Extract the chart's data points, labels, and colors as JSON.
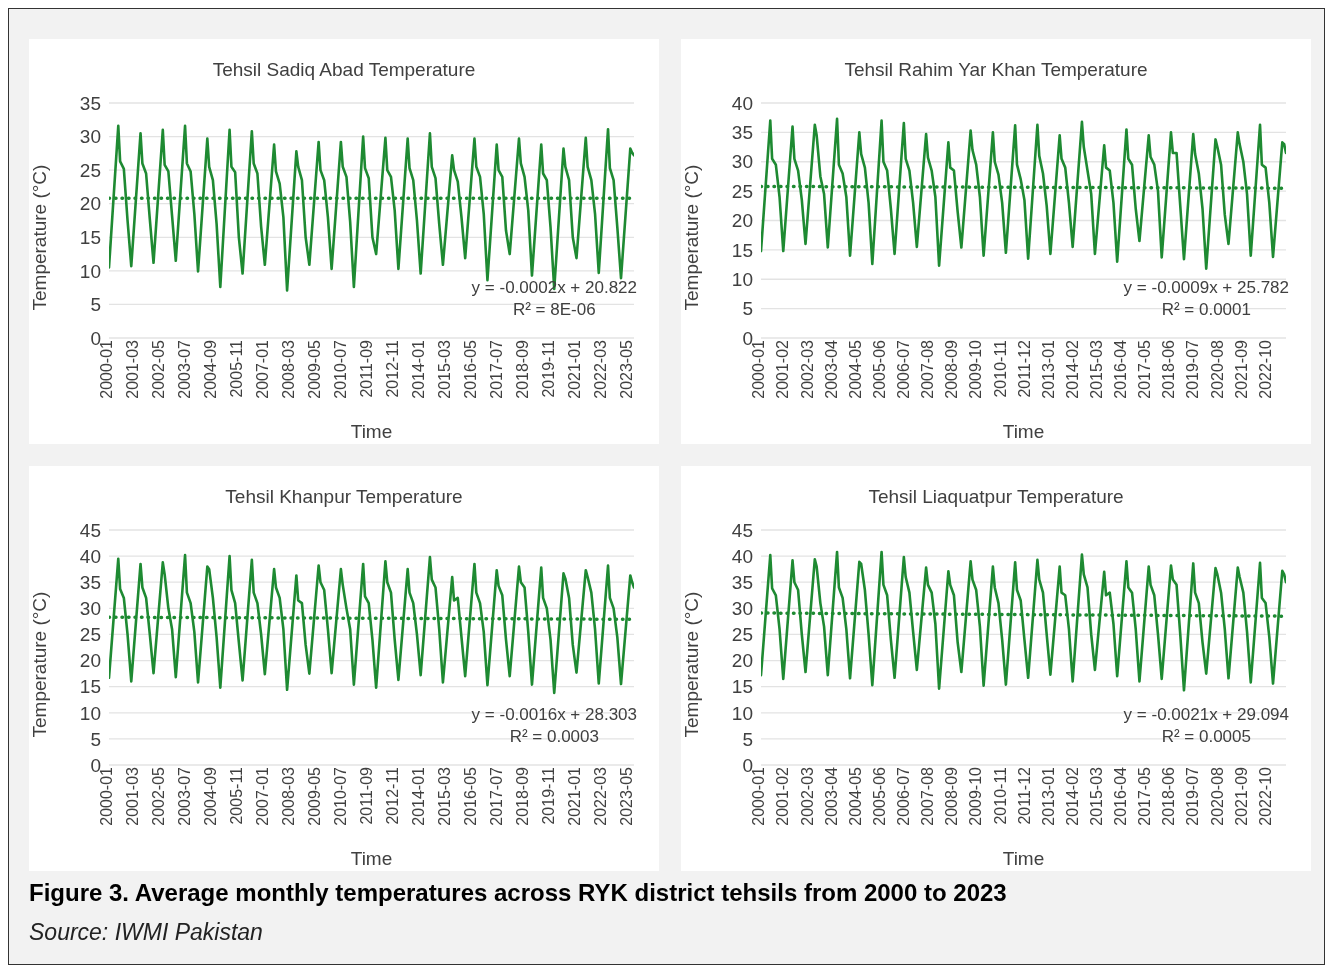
{
  "chart_data": [
    {
      "type": "line",
      "title": "Tehsil Sadiq Abad Temperature",
      "xlabel": "Time",
      "ylabel": "Temperature (°C)",
      "grid": "y",
      "ylim": [
        0,
        35
      ],
      "yticks": [
        0,
        5,
        10,
        15,
        20,
        25,
        30,
        35
      ],
      "xlim": [
        "2000-01",
        "2023-08"
      ],
      "xticks": [
        "2000-01",
        "2001-03",
        "2002-05",
        "2003-07",
        "2004-09",
        "2005-11",
        "2007-01",
        "2008-03",
        "2009-05",
        "2010-07",
        "2011-09",
        "2012-11",
        "2014-01",
        "2015-03",
        "2016-05",
        "2017-07",
        "2018-09",
        "2019-11",
        "2021-01",
        "2022-03",
        "2023-05"
      ],
      "annotations": [
        "y = -0.0002x + 20.822",
        "R² = 8E-06"
      ],
      "x": [
        "2000-01",
        "2000-06",
        "2000-07",
        "2000-09",
        "2000-11",
        "2001-01",
        "2001-06",
        "2001-07",
        "2001-09",
        "2001-11",
        "2002-01",
        "2002-06",
        "2002-07",
        "2002-09",
        "2002-11",
        "2003-01",
        "2003-06",
        "2003-07",
        "2003-09",
        "2003-11",
        "2004-01",
        "2004-06",
        "2004-07",
        "2004-09",
        "2004-11",
        "2005-01",
        "2005-06",
        "2005-07",
        "2005-09",
        "2005-11",
        "2006-01",
        "2006-06",
        "2006-07",
        "2006-09",
        "2006-11",
        "2007-01",
        "2007-06",
        "2007-07",
        "2007-09",
        "2007-11",
        "2008-01",
        "2008-06",
        "2008-07",
        "2008-09",
        "2008-11",
        "2009-01",
        "2009-06",
        "2009-07",
        "2009-09",
        "2009-11",
        "2010-01",
        "2010-06",
        "2010-07",
        "2010-09",
        "2010-11",
        "2011-01",
        "2011-06",
        "2011-07",
        "2011-09",
        "2011-11",
        "2012-01",
        "2012-06",
        "2012-07",
        "2012-09",
        "2012-11",
        "2013-01",
        "2013-06",
        "2013-07",
        "2013-09",
        "2013-11",
        "2014-01",
        "2014-06",
        "2014-07",
        "2014-09",
        "2014-11",
        "2015-01",
        "2015-06",
        "2015-07",
        "2015-09",
        "2015-11",
        "2016-01",
        "2016-06",
        "2016-07",
        "2016-09",
        "2016-11",
        "2017-01",
        "2017-06",
        "2017-07",
        "2017-09",
        "2017-11",
        "2018-01",
        "2018-06",
        "2018-07",
        "2018-09",
        "2018-11",
        "2019-01",
        "2019-06",
        "2019-07",
        "2019-09",
        "2019-11",
        "2020-01",
        "2020-06",
        "2020-07",
        "2020-09",
        "2020-11",
        "2021-01",
        "2021-06",
        "2021-07",
        "2021-09",
        "2021-11",
        "2022-01",
        "2022-06",
        "2022-07",
        "2022-09",
        "2022-11",
        "2023-01",
        "2023-06",
        "2023-07",
        "2023-08"
      ],
      "series": [
        {
          "type": "line",
          "color": "#1e8a32",
          "values": [
            10.5,
            31.6,
            26.3,
            25.2,
            17.5,
            10.7,
            30.5,
            26,
            24.5,
            17.7,
            11.2,
            31,
            25.8,
            24.8,
            18.2,
            11.5,
            31.6,
            26,
            24.8,
            18.5,
            9.9,
            29.7,
            25.5,
            23.5,
            17,
            7.6,
            31,
            25.5,
            24.7,
            15,
            9.6,
            30.8,
            26,
            24.5,
            16.6,
            10.9,
            28.8,
            24.8,
            23,
            18,
            7.1,
            27.8,
            25.5,
            23.5,
            15,
            10.9,
            29.2,
            25,
            23.5,
            18,
            10.3,
            29.2,
            25.5,
            24,
            17.3,
            7.6,
            30,
            25.3,
            23.8,
            15,
            12.5,
            29.8,
            25,
            24,
            19,
            10.3,
            29.7,
            25.3,
            23.5,
            17.5,
            9.6,
            30.5,
            25.5,
            23.8,
            17,
            10.9,
            27.2,
            25,
            23.3,
            18,
            11.9,
            29.7,
            25.5,
            24,
            18.5,
            8.6,
            28.8,
            25,
            24,
            16,
            12.5,
            29.7,
            26,
            24,
            19,
            9.3,
            28.8,
            24.5,
            23.5,
            16.5,
            7.3,
            28.2,
            25.5,
            23.5,
            15,
            11.9,
            29.8,
            25.5,
            23.5,
            18.5,
            9.7,
            31.1,
            25.3,
            23.5,
            16.5,
            8.9,
            28.2,
            27.6,
            27.2
          ]
        },
        {
          "type": "line",
          "color": "#1e8a32",
          "line_style": "dotted",
          "x": [
            "2000-01",
            "2023-08"
          ],
          "values": [
            20.8,
            20.8
          ]
        }
      ]
    },
    {
      "type": "line",
      "title": "Tehsil Rahim Yar Khan Temperature",
      "xlabel": "Time",
      "ylabel": "Temperature (°C)",
      "grid": "y",
      "ylim": [
        0,
        40
      ],
      "yticks": [
        0,
        5,
        10,
        15,
        20,
        25,
        30,
        35,
        40
      ],
      "xlim": [
        "2000-01",
        "2023-08"
      ],
      "xticks": [
        "2000-01",
        "2001-02",
        "2002-03",
        "2003-04",
        "2004-05",
        "2005-06",
        "2006-07",
        "2007-08",
        "2008-09",
        "2009-10",
        "2010-11",
        "2011-12",
        "2013-01",
        "2014-02",
        "2015-03",
        "2016-04",
        "2017-05",
        "2018-06",
        "2019-07",
        "2020-08",
        "2021-09",
        "2022-10"
      ],
      "annotations": [
        "y = -0.0009x + 25.782",
        "R² = 0.0001"
      ],
      "x": [
        "2000-01",
        "2000-06",
        "2000-07",
        "2000-09",
        "2000-11",
        "2001-01",
        "2001-06",
        "2001-07",
        "2001-09",
        "2001-11",
        "2002-01",
        "2002-06",
        "2002-07",
        "2002-09",
        "2002-11",
        "2003-01",
        "2003-06",
        "2003-07",
        "2003-09",
        "2003-11",
        "2004-01",
        "2004-06",
        "2004-07",
        "2004-09",
        "2004-11",
        "2005-01",
        "2005-06",
        "2005-07",
        "2005-09",
        "2005-11",
        "2006-01",
        "2006-06",
        "2006-07",
        "2006-09",
        "2006-11",
        "2007-01",
        "2007-06",
        "2007-07",
        "2007-09",
        "2007-11",
        "2008-01",
        "2008-06",
        "2008-07",
        "2008-09",
        "2008-11",
        "2009-01",
        "2009-06",
        "2009-07",
        "2009-09",
        "2009-11",
        "2010-01",
        "2010-06",
        "2010-07",
        "2010-09",
        "2010-11",
        "2011-01",
        "2011-06",
        "2011-07",
        "2011-09",
        "2011-11",
        "2012-01",
        "2012-06",
        "2012-07",
        "2012-09",
        "2012-11",
        "2013-01",
        "2013-06",
        "2013-07",
        "2013-09",
        "2013-11",
        "2014-01",
        "2014-06",
        "2014-07",
        "2014-09",
        "2014-11",
        "2015-01",
        "2015-06",
        "2015-07",
        "2015-09",
        "2015-11",
        "2016-01",
        "2016-06",
        "2016-07",
        "2016-09",
        "2016-11",
        "2017-01",
        "2017-06",
        "2017-07",
        "2017-09",
        "2017-11",
        "2018-01",
        "2018-06",
        "2018-07",
        "2018-09",
        "2018-11",
        "2019-01",
        "2019-06",
        "2019-07",
        "2019-09",
        "2019-11",
        "2020-01",
        "2020-06",
        "2020-07",
        "2020-09",
        "2020-11",
        "2021-01",
        "2021-06",
        "2021-07",
        "2021-09",
        "2021-11",
        "2022-01",
        "2022-06",
        "2022-07",
        "2022-09",
        "2022-11",
        "2023-01",
        "2023-06",
        "2023-07",
        "2023-08"
      ],
      "series": [
        {
          "type": "line",
          "color": "#1e8a32",
          "values": [
            14.8,
            37,
            30.5,
            29.5,
            24,
            14.8,
            36,
            30.5,
            28.5,
            23.5,
            16,
            36.3,
            34.5,
            27.5,
            24.5,
            15.4,
            37.3,
            29.5,
            28,
            24,
            14,
            35,
            31.3,
            29,
            23,
            12.6,
            37,
            30,
            28.5,
            22,
            14.3,
            36.6,
            30.5,
            28.5,
            23,
            15.5,
            34.7,
            30.7,
            28.5,
            24,
            12.3,
            33.3,
            29,
            28.5,
            21.5,
            15.4,
            35.3,
            32,
            29.5,
            24,
            14,
            35,
            30,
            27.8,
            23,
            14.5,
            36.2,
            29.5,
            27,
            23.5,
            13.5,
            36.3,
            31,
            28,
            22.5,
            14.3,
            34.5,
            30.5,
            29,
            23,
            15.5,
            36.8,
            32.5,
            28.5,
            24.5,
            14.3,
            32.8,
            29,
            28.5,
            23,
            13,
            35.5,
            30.5,
            29.5,
            22,
            16.5,
            34.5,
            30.8,
            29.5,
            25,
            13.7,
            35,
            31.5,
            31.5,
            22.5,
            13.4,
            34.7,
            31.3,
            28,
            22,
            11.8,
            33.8,
            32.5,
            29.5,
            21,
            16,
            35,
            33,
            30,
            24.5,
            14,
            36.3,
            29.5,
            29,
            23,
            13.8,
            33.3,
            33,
            31.5
          ]
        },
        {
          "type": "line",
          "color": "#1e8a32",
          "line_style": "dotted",
          "x": [
            "2000-01",
            "2023-08"
          ],
          "values": [
            25.8,
            25.5
          ]
        }
      ]
    },
    {
      "type": "line",
      "title": "Tehsil Khanpur Temperature",
      "xlabel": "Time",
      "ylabel": "Temperature (°C)",
      "grid": "y",
      "ylim": [
        0,
        45
      ],
      "yticks": [
        0,
        5,
        10,
        15,
        20,
        25,
        30,
        35,
        40,
        45
      ],
      "xlim": [
        "2000-01",
        "2023-08"
      ],
      "xticks": [
        "2000-01",
        "2001-03",
        "2002-05",
        "2003-07",
        "2004-09",
        "2005-11",
        "2007-01",
        "2008-03",
        "2009-05",
        "2010-07",
        "2011-09",
        "2012-11",
        "2014-01",
        "2015-03",
        "2016-05",
        "2017-07",
        "2018-09",
        "2019-11",
        "2021-01",
        "2022-03",
        "2023-05"
      ],
      "annotations": [
        "y = -0.0016x + 28.303",
        "R² = 0.0003"
      ],
      "x": [
        "2000-01",
        "2000-06",
        "2000-07",
        "2000-09",
        "2000-11",
        "2001-01",
        "2001-06",
        "2001-07",
        "2001-09",
        "2001-11",
        "2002-01",
        "2002-06",
        "2002-07",
        "2002-09",
        "2002-11",
        "2003-01",
        "2003-06",
        "2003-07",
        "2003-09",
        "2003-11",
        "2004-01",
        "2004-06",
        "2004-07",
        "2004-09",
        "2004-11",
        "2005-01",
        "2005-06",
        "2005-07",
        "2005-09",
        "2005-11",
        "2006-01",
        "2006-06",
        "2006-07",
        "2006-09",
        "2006-11",
        "2007-01",
        "2007-06",
        "2007-07",
        "2007-09",
        "2007-11",
        "2008-01",
        "2008-06",
        "2008-07",
        "2008-09",
        "2008-11",
        "2009-01",
        "2009-06",
        "2009-07",
        "2009-09",
        "2009-11",
        "2010-01",
        "2010-06",
        "2010-07",
        "2010-09",
        "2010-11",
        "2011-01",
        "2011-06",
        "2011-07",
        "2011-09",
        "2011-11",
        "2012-01",
        "2012-06",
        "2012-07",
        "2012-09",
        "2012-11",
        "2013-01",
        "2013-06",
        "2013-07",
        "2013-09",
        "2013-11",
        "2014-01",
        "2014-06",
        "2014-07",
        "2014-09",
        "2014-11",
        "2015-01",
        "2015-06",
        "2015-07",
        "2015-09",
        "2015-11",
        "2016-01",
        "2016-06",
        "2016-07",
        "2016-09",
        "2016-11",
        "2017-01",
        "2017-06",
        "2017-07",
        "2017-09",
        "2017-11",
        "2018-01",
        "2018-06",
        "2018-07",
        "2018-09",
        "2018-11",
        "2019-01",
        "2019-06",
        "2019-07",
        "2019-09",
        "2019-11",
        "2020-01",
        "2020-06",
        "2020-07",
        "2020-09",
        "2020-11",
        "2021-01",
        "2021-06",
        "2021-07",
        "2021-09",
        "2021-11",
        "2022-01",
        "2022-06",
        "2022-07",
        "2022-09",
        "2022-11",
        "2023-01",
        "2023-06",
        "2023-07",
        "2023-08"
      ],
      "series": [
        {
          "type": "line",
          "color": "#1e8a32",
          "values": [
            16.7,
            39.5,
            33.7,
            32,
            25,
            16,
            38.5,
            34,
            32,
            25,
            17.6,
            38.8,
            36.5,
            30,
            26,
            16.8,
            40.2,
            33,
            31,
            25.5,
            15.8,
            38,
            37.5,
            32,
            24.5,
            14.8,
            40,
            33.5,
            31,
            23.5,
            16.2,
            39.3,
            33,
            31,
            25,
            17.4,
            37.5,
            34,
            32,
            26,
            14.4,
            36.3,
            31.5,
            31,
            23,
            17.5,
            38.2,
            35,
            33.5,
            26,
            17.6,
            37.5,
            34.5,
            30,
            26,
            15.4,
            38.5,
            32.3,
            31,
            24,
            14.8,
            39,
            35,
            33,
            24,
            16.3,
            37.5,
            33,
            31,
            25,
            17.2,
            39.8,
            35.5,
            34,
            26,
            15.8,
            36,
            31.5,
            32,
            24.5,
            17,
            38.5,
            33,
            31,
            25.5,
            15.3,
            37.3,
            34.3,
            32.5,
            24,
            17,
            38,
            35,
            34,
            25.5,
            15.4,
            37.8,
            32,
            30,
            24,
            13.8,
            36.7,
            35.7,
            32,
            23,
            17.7,
            37.3,
            36,
            33,
            26,
            15.6,
            38.2,
            32,
            30,
            24.5,
            15.5,
            36.3,
            35,
            34
          ]
        },
        {
          "type": "line",
          "color": "#1e8a32",
          "line_style": "dotted",
          "x": [
            "2000-01",
            "2023-08"
          ],
          "values": [
            28.3,
            27.9
          ]
        }
      ]
    },
    {
      "type": "line",
      "title": "Tehsil Liaquatpur Temperature",
      "xlabel": "Time",
      "ylabel": "Temperature (°C)",
      "grid": "y",
      "ylim": [
        0,
        45
      ],
      "yticks": [
        0,
        5,
        10,
        15,
        20,
        25,
        30,
        35,
        40,
        45
      ],
      "xlim": [
        "2000-01",
        "2023-08"
      ],
      "xticks": [
        "2000-01",
        "2001-02",
        "2002-03",
        "2003-04",
        "2004-05",
        "2005-06",
        "2006-07",
        "2007-08",
        "2008-09",
        "2009-10",
        "2010-11",
        "2011-12",
        "2013-01",
        "2014-02",
        "2015-03",
        "2016-04",
        "2017-05",
        "2018-06",
        "2019-07",
        "2020-08",
        "2021-09",
        "2022-10"
      ],
      "annotations": [
        "y = -0.0021x + 29.094",
        "R² = 0.0005"
      ],
      "x": [
        "2000-01",
        "2000-06",
        "2000-07",
        "2000-09",
        "2000-11",
        "2001-01",
        "2001-06",
        "2001-07",
        "2001-09",
        "2001-11",
        "2002-01",
        "2002-06",
        "2002-07",
        "2002-09",
        "2002-11",
        "2003-01",
        "2003-06",
        "2003-07",
        "2003-09",
        "2003-11",
        "2004-01",
        "2004-06",
        "2004-07",
        "2004-09",
        "2004-11",
        "2005-01",
        "2005-06",
        "2005-07",
        "2005-09",
        "2005-11",
        "2006-01",
        "2006-06",
        "2006-07",
        "2006-09",
        "2006-11",
        "2007-01",
        "2007-06",
        "2007-07",
        "2007-09",
        "2007-11",
        "2008-01",
        "2008-06",
        "2008-07",
        "2008-09",
        "2008-11",
        "2009-01",
        "2009-06",
        "2009-07",
        "2009-09",
        "2009-11",
        "2010-01",
        "2010-06",
        "2010-07",
        "2010-09",
        "2010-11",
        "2011-01",
        "2011-06",
        "2011-07",
        "2011-09",
        "2011-11",
        "2012-01",
        "2012-06",
        "2012-07",
        "2012-09",
        "2012-11",
        "2013-01",
        "2013-06",
        "2013-07",
        "2013-09",
        "2013-11",
        "2014-01",
        "2014-06",
        "2014-07",
        "2014-09",
        "2014-11",
        "2015-01",
        "2015-06",
        "2015-07",
        "2015-09",
        "2015-11",
        "2016-01",
        "2016-06",
        "2016-07",
        "2016-09",
        "2016-11",
        "2017-01",
        "2017-06",
        "2017-07",
        "2017-09",
        "2017-11",
        "2018-01",
        "2018-06",
        "2018-07",
        "2018-09",
        "2018-11",
        "2019-01",
        "2019-06",
        "2019-07",
        "2019-09",
        "2019-11",
        "2020-01",
        "2020-06",
        "2020-07",
        "2020-09",
        "2020-11",
        "2021-01",
        "2021-06",
        "2021-07",
        "2021-09",
        "2021-11",
        "2022-01",
        "2022-06",
        "2022-07",
        "2022-09",
        "2022-11",
        "2023-01",
        "2023-06",
        "2023-07",
        "2023-08"
      ],
      "series": [
        {
          "type": "line",
          "color": "#1e8a32",
          "values": [
            17.2,
            40.2,
            33.8,
            32.5,
            26,
            16.5,
            39.2,
            35,
            33.5,
            25,
            17.8,
            39.4,
            38,
            31,
            26.5,
            17.2,
            40.8,
            34,
            32,
            26,
            16.6,
            38.9,
            38.5,
            33.5,
            25,
            15.3,
            40.8,
            34.5,
            32.5,
            24,
            16.7,
            39.8,
            36,
            33,
            25.5,
            18.2,
            37.8,
            34.5,
            33,
            27,
            14.6,
            37.1,
            34.5,
            32.5,
            23.5,
            17.8,
            39,
            35.5,
            33.5,
            26.5,
            15.2,
            38,
            34,
            31,
            24,
            15.4,
            38.8,
            33.5,
            31.5,
            24,
            16.7,
            39.3,
            35.5,
            33,
            25,
            17.3,
            38,
            33,
            32.5,
            26,
            16,
            40.3,
            36.5,
            34,
            25,
            18.2,
            37,
            32.5,
            33,
            27,
            17,
            39,
            34,
            33,
            26,
            16,
            38,
            34.5,
            32.5,
            25,
            16.5,
            38.2,
            35.5,
            34.5,
            25,
            14.3,
            38.6,
            33,
            31,
            23.5,
            17.5,
            37.7,
            36.5,
            33,
            26,
            16.6,
            37.8,
            36,
            33,
            25.5,
            15.8,
            38.7,
            32,
            31,
            24.5,
            15.6,
            37.2,
            36.5,
            35
          ]
        },
        {
          "type": "line",
          "color": "#1e8a32",
          "line_style": "dotted",
          "x": [
            "2000-01",
            "2023-08"
          ],
          "values": [
            29.1,
            28.5
          ]
        }
      ]
    },
    {
      "type": "other",
      "title": "Figure 3. Average monthly temperatures across RYK district tehsils from 2000 to 2023",
      "annotations": [
        "Source: IWMI Pakistan"
      ]
    }
  ]
}
